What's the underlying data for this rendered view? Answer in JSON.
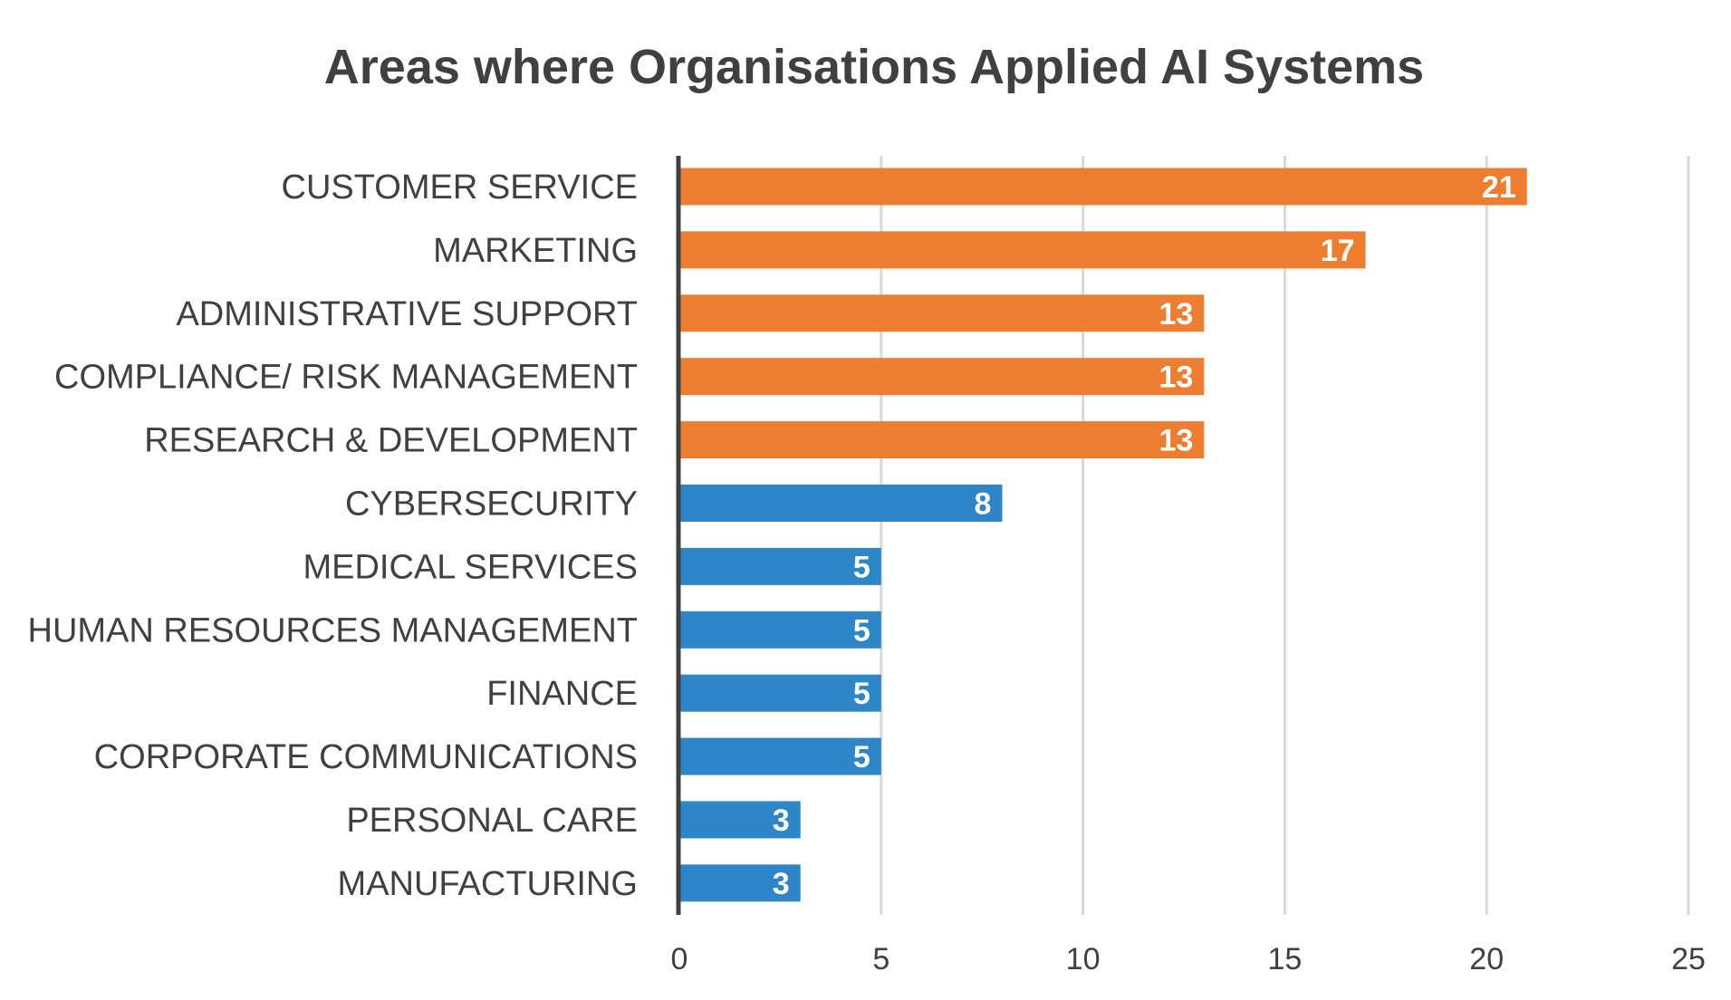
{
  "chart_data": {
    "type": "bar",
    "orientation": "horizontal",
    "title": "Areas where Organisations Applied AI Systems",
    "xlabel": "",
    "ylabel": "",
    "xlim": [
      0,
      25
    ],
    "x_ticks": [
      0,
      5,
      10,
      15,
      20,
      25
    ],
    "grid": true,
    "legend": "none",
    "categories": [
      "CUSTOMER SERVICE",
      "MARKETING",
      "ADMINISTRATIVE SUPPORT",
      "COMPLIANCE/ RISK MANAGEMENT",
      "RESEARCH & DEVELOPMENT",
      "CYBERSECURITY",
      "MEDICAL SERVICES",
      "HUMAN RESOURCES MANAGEMENT",
      "FINANCE",
      "CORPORATE COMMUNICATIONS",
      "PERSONAL CARE",
      "MANUFACTURING"
    ],
    "values": [
      21,
      17,
      13,
      13,
      13,
      8,
      5,
      5,
      5,
      5,
      3,
      3
    ],
    "bar_colors": [
      "#ED7D31",
      "#ED7D31",
      "#ED7D31",
      "#ED7D31",
      "#ED7D31",
      "#2E86C9",
      "#2E86C9",
      "#2E86C9",
      "#2E86C9",
      "#2E86C9",
      "#2E86C9",
      "#2E86C9"
    ],
    "data_labels": true
  }
}
